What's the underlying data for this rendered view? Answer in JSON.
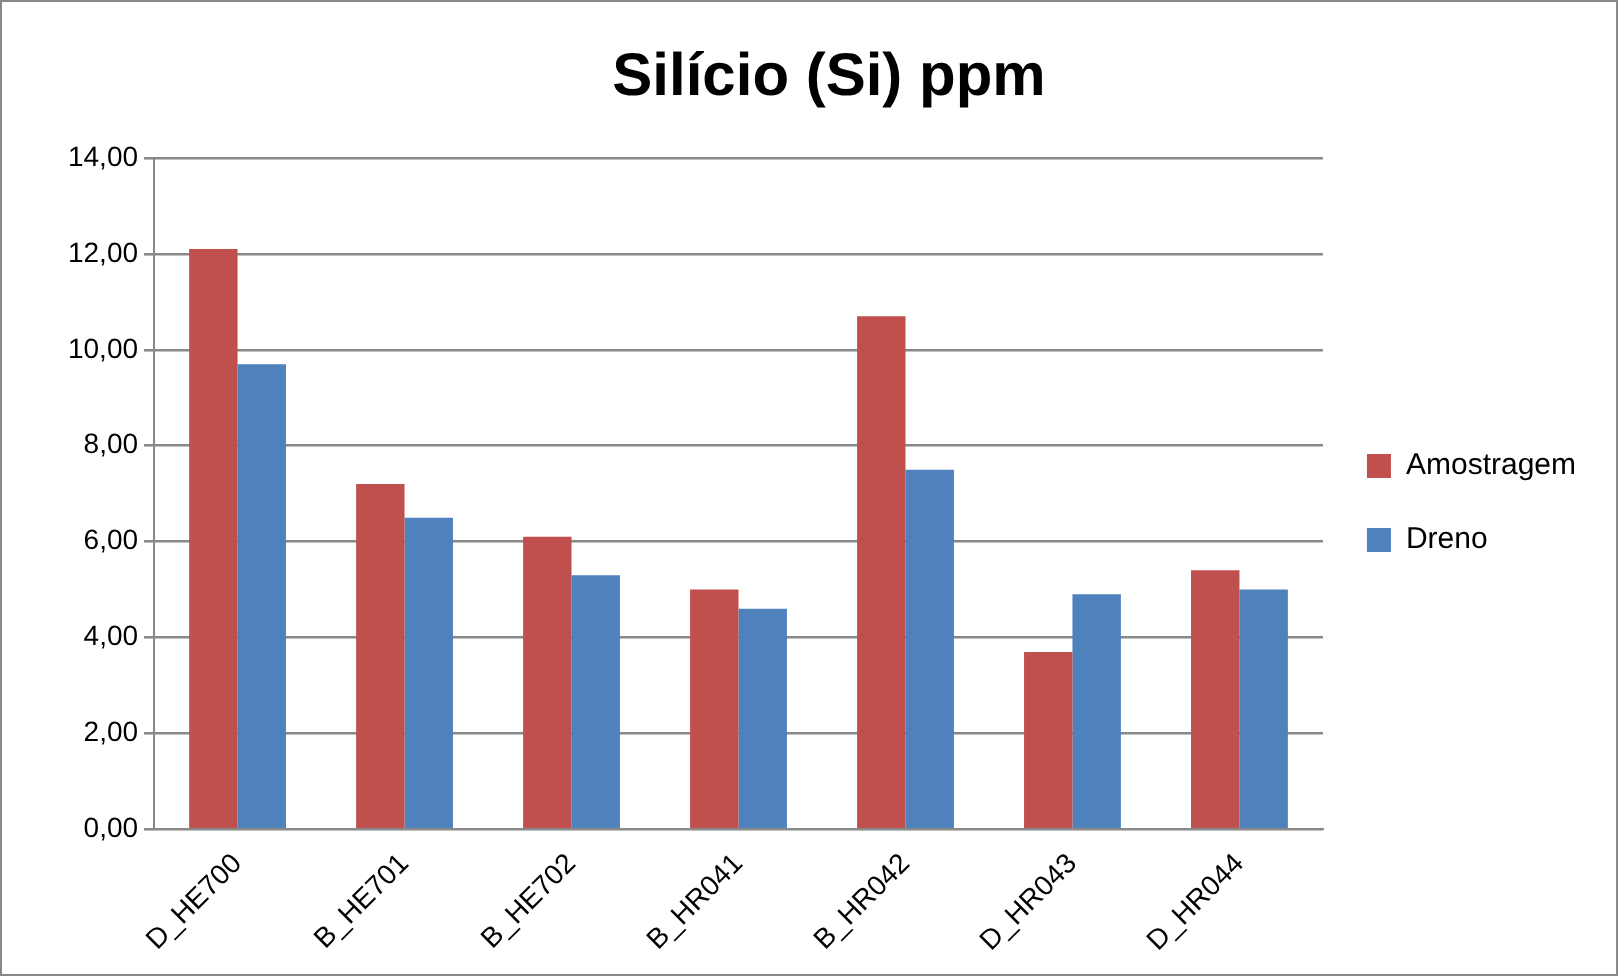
{
  "chart_data": {
    "type": "bar",
    "title": "Silício (Si) ppm",
    "categories": [
      "D_HE700",
      "B_HE701",
      "B_HE702",
      "B_HR041",
      "B_HR042",
      "D_HR043",
      "D_HR044"
    ],
    "series": [
      {
        "name": "Amostragem",
        "color": "#c0504d",
        "values": [
          12.1,
          7.2,
          6.1,
          5.0,
          10.7,
          3.7,
          5.4
        ]
      },
      {
        "name": "Dreno",
        "color": "#4f81bd",
        "values": [
          9.7,
          6.5,
          5.3,
          4.6,
          7.5,
          4.9,
          5.0
        ]
      }
    ],
    "ylim": [
      0,
      14
    ],
    "yticks": [
      {
        "value": 0,
        "label": "0,00"
      },
      {
        "value": 2,
        "label": "2,00"
      },
      {
        "value": 4,
        "label": "4,00"
      },
      {
        "value": 6,
        "label": "6,00"
      },
      {
        "value": 8,
        "label": "8,00"
      },
      {
        "value": 10,
        "label": "10,00"
      },
      {
        "value": 12,
        "label": "12,00"
      },
      {
        "value": 14,
        "label": "14,00"
      }
    ],
    "grid": "y",
    "legend": "right"
  }
}
